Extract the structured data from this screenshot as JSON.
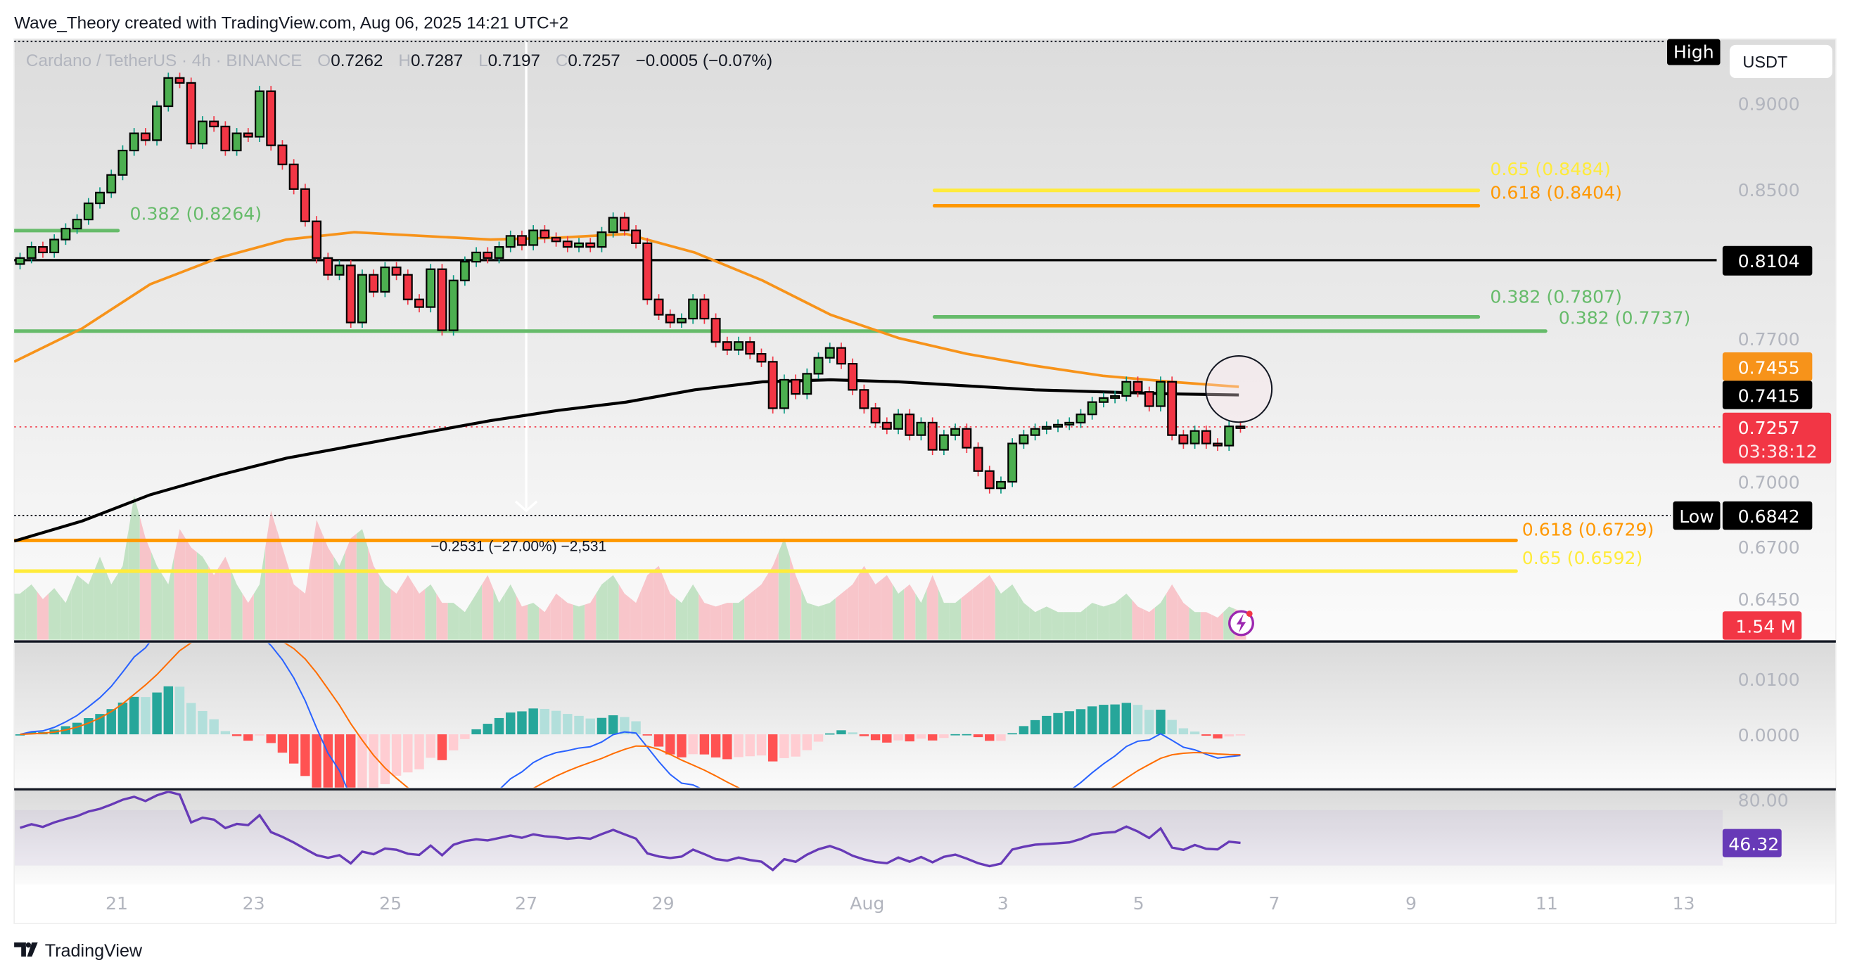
{
  "header": {
    "attribution": "Wave_Theory created with TradingView.com, Aug 06, 2025 14:21 UTC+2"
  },
  "legend": {
    "symbol": "Cardano / TetherUS · 4h · BINANCE",
    "o_label": "O",
    "o": "0.7262",
    "h_label": "H",
    "h": "0.7287",
    "l_label": "L",
    "l": "0.7197",
    "c_label": "C",
    "c": "0.7257",
    "change": "−0.0005 (−0.07%)"
  },
  "price_axis": {
    "currency": "USDT",
    "ticks": [
      "0.9000",
      "0.8500",
      "0.7700",
      "0.7000",
      "0.6700",
      "0.6450"
    ],
    "high_label": "High",
    "low_label": "Low",
    "low_value": "0.6842",
    "level_0_8104": "0.8104",
    "ma_orange_value": "0.7455",
    "ma_black_value": "0.7415",
    "last_price": "0.7257",
    "countdown": "03:38:12",
    "volume_value": "1.54 M"
  },
  "macd_axis": {
    "ticks": [
      "0.0100",
      "0.0000"
    ]
  },
  "rsi_axis": {
    "tick": "80.00",
    "value": "46.32"
  },
  "time_axis": {
    "ticks": [
      "21",
      "23",
      "25",
      "27",
      "29",
      "Aug",
      "3",
      "5",
      "7",
      "9",
      "11",
      "13"
    ]
  },
  "annotations": {
    "fib_left_382": "0.382 (0.8264)",
    "fib_65_top": "0.65 (0.8484)",
    "fib_618_top": "0.618 (0.8404)",
    "fib_382_a": "0.382 (0.7807)",
    "fib_382_b": "0.382 (0.7737)",
    "fib_618_bottom": "0.618 (0.6729)",
    "fib_65_bottom": "0.65 (0.6592)",
    "measure": "−0.2531 (−27.00%) −2,531"
  },
  "footer": {
    "brand": "TradingView"
  },
  "colors": {
    "up": "#4caf50",
    "down": "#f23645",
    "ma_orange": "#f7931a",
    "ma_black": "#000000",
    "fib_green": "#66bb6a",
    "fib_orange": "#ff9800",
    "fib_yellow": "#ffeb3b",
    "macd": "#2962ff",
    "signal": "#ff6d00",
    "rsi": "#673ab7"
  },
  "chart_data": {
    "type": "candlestick",
    "title": "Cardano / TetherUS · 4h · BINANCE",
    "y_scale": "log",
    "ylim": [
      0.64,
      0.94
    ],
    "timeframe": "4h",
    "first_candle": "Jul 19",
    "last_candle": "Aug 6",
    "close": [
      0.812,
      0.818,
      0.815,
      0.822,
      0.828,
      0.833,
      0.842,
      0.848,
      0.858,
      0.872,
      0.882,
      0.878,
      0.898,
      0.915,
      0.912,
      0.876,
      0.889,
      0.886,
      0.872,
      0.882,
      0.88,
      0.907,
      0.875,
      0.864,
      0.85,
      0.832,
      0.812,
      0.803,
      0.808,
      0.778,
      0.803,
      0.794,
      0.807,
      0.803,
      0.79,
      0.786,
      0.806,
      0.774,
      0.8,
      0.81,
      0.815,
      0.812,
      0.818,
      0.824,
      0.819,
      0.827,
      0.823,
      0.821,
      0.818,
      0.82,
      0.818,
      0.826,
      0.834,
      0.827,
      0.82,
      0.79,
      0.782,
      0.778,
      0.78,
      0.79,
      0.78,
      0.768,
      0.764,
      0.768,
      0.762,
      0.758,
      0.735,
      0.749,
      0.742,
      0.752,
      0.76,
      0.765,
      0.757,
      0.744,
      0.735,
      0.728,
      0.725,
      0.732,
      0.722,
      0.728,
      0.715,
      0.722,
      0.725,
      0.716,
      0.705,
      0.697,
      0.7,
      0.718,
      0.722,
      0.725,
      0.726,
      0.727,
      0.728,
      0.732,
      0.738,
      0.74,
      0.741,
      0.748,
      0.743,
      0.736,
      0.748,
      0.722,
      0.718,
      0.724,
      0.718,
      0.717,
      0.7262,
      0.7257
    ],
    "volume_millions": [
      2.5,
      3.0,
      2.2,
      2.8,
      2.0,
      3.5,
      3.0,
      4.5,
      3.0,
      4.0,
      7.8,
      5.5,
      4.0,
      3.0,
      6.0,
      5.0,
      4.5,
      3.5,
      4.5,
      3.0,
      2.0,
      3.0,
      7.0,
      5.0,
      3.0,
      2.5,
      6.5,
      5.0,
      4.0,
      5.5,
      6.0,
      4.0,
      3.0,
      2.5,
      3.5,
      2.5,
      3.0,
      2.0,
      2.0,
      1.5,
      2.5,
      3.5,
      2.0,
      3.0,
      1.8,
      2.0,
      1.5,
      2.5,
      2.0,
      1.8,
      2.0,
      3.0,
      3.5,
      2.5,
      2.0,
      3.5,
      4.0,
      2.5,
      2.0,
      3.0,
      2.0,
      1.8,
      2.0,
      2.0,
      2.5,
      3.0,
      4.0,
      5.5,
      3.5,
      2.0,
      1.8,
      2.0,
      2.5,
      3.0,
      4.0,
      3.0,
      3.5,
      2.5,
      3.0,
      2.0,
      3.5,
      2.0,
      2.0,
      2.5,
      3.0,
      3.5,
      2.5,
      3.0,
      2.0,
      1.5,
      1.8,
      1.5,
      1.5,
      1.5,
      2.0,
      1.8,
      2.0,
      2.5,
      1.8,
      1.5,
      2.0,
      3.0,
      2.0,
      1.5,
      1.5,
      1.2,
      1.8,
      1.54
    ],
    "ma_orange_daily": [
      0.758,
      0.775,
      0.798,
      0.812,
      0.822,
      0.826,
      0.824,
      0.822,
      0.823,
      0.825,
      0.815,
      0.8,
      0.782,
      0.77,
      0.762,
      0.756,
      0.751,
      0.748,
      0.7455
    ],
    "ma_black_daily": [
      0.673,
      0.682,
      0.694,
      0.703,
      0.711,
      0.717,
      0.723,
      0.729,
      0.734,
      0.738,
      0.744,
      0.748,
      0.749,
      0.748,
      0.746,
      0.744,
      0.743,
      0.742,
      0.7415
    ],
    "levels": [
      {
        "label": "0.382 (0.8264)",
        "price": 0.8264
      },
      {
        "label": "0.65 (0.8484)",
        "price": 0.8484
      },
      {
        "label": "0.618 (0.8404)",
        "price": 0.8404
      },
      {
        "label": "0.8104",
        "price": 0.8104
      },
      {
        "label": "0.382 (0.7807)",
        "price": 0.7807
      },
      {
        "label": "0.382 (0.7737)",
        "price": 0.7737
      },
      {
        "label": "0.618 (0.6729)",
        "price": 0.6729
      },
      {
        "label": "0.65 (0.6592)",
        "price": 0.6592
      }
    ],
    "high": 0.9373,
    "low": 0.6842,
    "rsi_last": 46.32,
    "grid": false
  }
}
